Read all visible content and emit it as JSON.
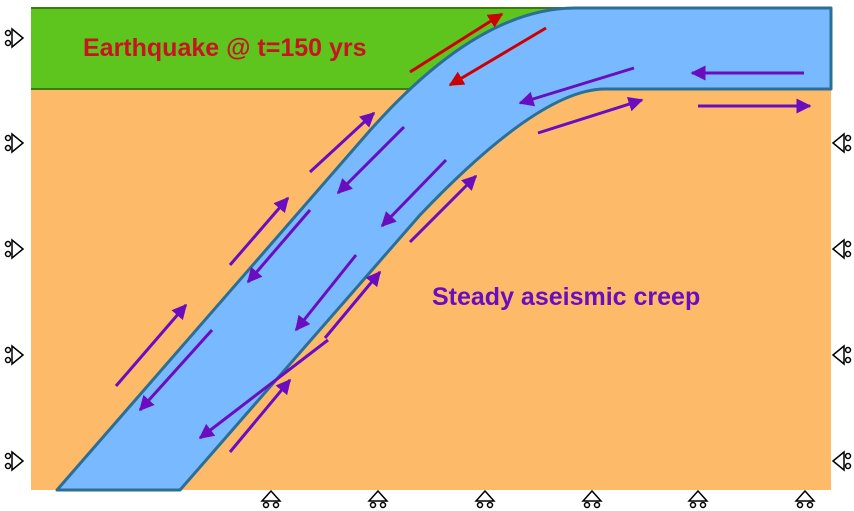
{
  "labels": {
    "earthquake": "Earthquake @ t=150 yrs",
    "creep": "Steady aseismic creep"
  },
  "colors": {
    "seismogenic_layer": "#5ec51e",
    "host_rock": "#fdbb6a",
    "fault_zone": "#78b9ff",
    "fault_outline": "#2b6f96",
    "earthquake_arrows": "#cc0000",
    "creep_arrows": "#6a0dbe",
    "supports": "#000000"
  },
  "icons": {
    "left_supports": "roller-support-icon",
    "right_supports": "roller-support-icon",
    "bottom_supports": "roller-support-icon"
  }
}
